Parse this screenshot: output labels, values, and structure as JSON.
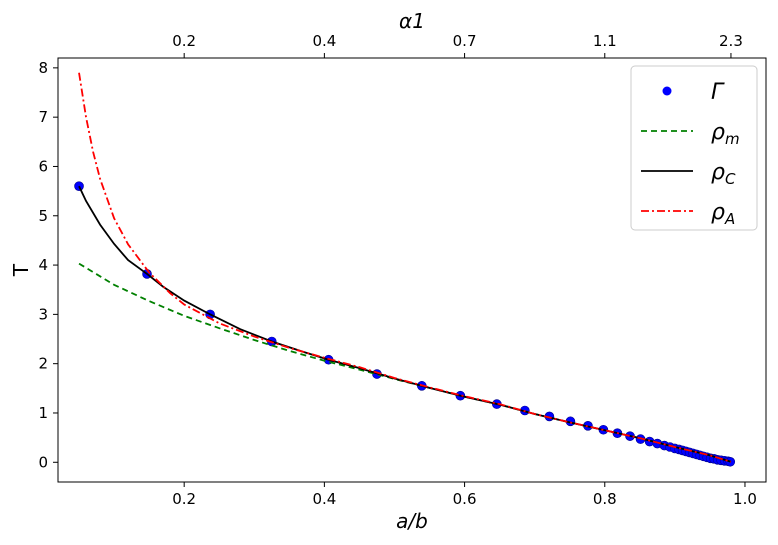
{
  "chart_data": {
    "type": "line",
    "xlabel": "a/b",
    "ylabel": "T",
    "top_axis_label": "α1",
    "xlim": [
      0.02,
      1.03
    ],
    "ylim": [
      -0.4,
      8.2
    ],
    "x_ticks": [
      0.2,
      0.4,
      0.6,
      0.8,
      1.0
    ],
    "x_tick_labels": [
      "0.2",
      "0.4",
      "0.6",
      "0.8",
      "1.0"
    ],
    "y_ticks": [
      0,
      1,
      2,
      3,
      4,
      5,
      6,
      7,
      8
    ],
    "y_tick_labels": [
      "0",
      "1",
      "2",
      "3",
      "4",
      "5",
      "6",
      "7",
      "8"
    ],
    "top_ticks": [
      0.2,
      0.4,
      0.6,
      0.8,
      0.98
    ],
    "top_tick_labels": [
      "0.2",
      "0.4",
      "0.7",
      "1.1",
      "2.3"
    ],
    "grid": false,
    "legend_position": "top-right",
    "series": [
      {
        "name": "Γ",
        "legend_main": "Γ",
        "legend_sub": "",
        "style": "markers",
        "color": "#0000ff",
        "x": [
          0.05,
          0.147,
          0.237,
          0.325,
          0.406,
          0.475,
          0.539,
          0.594,
          0.646,
          0.686,
          0.721,
          0.751,
          0.776,
          0.798,
          0.818,
          0.836,
          0.851,
          0.864,
          0.875,
          0.885,
          0.893,
          0.9,
          0.906,
          0.911,
          0.916,
          0.921,
          0.926,
          0.931,
          0.936,
          0.941,
          0.946,
          0.951,
          0.956,
          0.961,
          0.966,
          0.971,
          0.976,
          0.979
        ],
        "y": [
          5.6,
          3.82,
          3.0,
          2.45,
          2.08,
          1.79,
          1.55,
          1.35,
          1.18,
          1.05,
          0.93,
          0.83,
          0.74,
          0.66,
          0.59,
          0.53,
          0.47,
          0.42,
          0.38,
          0.34,
          0.31,
          0.28,
          0.26,
          0.24,
          0.22,
          0.2,
          0.18,
          0.16,
          0.14,
          0.12,
          0.1,
          0.08,
          0.07,
          0.05,
          0.04,
          0.03,
          0.02,
          0.01
        ]
      },
      {
        "name": "ρm",
        "legend_main": "ρ",
        "legend_sub": "m",
        "style": "dashed",
        "color": "#008000",
        "x": [
          0.05,
          0.1,
          0.15,
          0.2,
          0.25,
          0.3,
          0.35,
          0.4,
          0.45,
          0.5,
          0.55,
          0.6,
          0.65,
          0.7,
          0.75,
          0.8,
          0.85,
          0.9,
          0.95,
          0.98
        ],
        "y": [
          4.03,
          3.6,
          3.27,
          2.97,
          2.72,
          2.48,
          2.26,
          2.06,
          1.88,
          1.69,
          1.51,
          1.33,
          1.17,
          0.98,
          0.81,
          0.65,
          0.49,
          0.31,
          0.14,
          0.01
        ]
      },
      {
        "name": "ρC",
        "legend_main": "ρ",
        "legend_sub": "C",
        "style": "solid",
        "color": "#000000",
        "x": [
          0.05,
          0.06,
          0.08,
          0.1,
          0.12,
          0.147,
          0.17,
          0.2,
          0.237,
          0.28,
          0.325,
          0.37,
          0.406,
          0.45,
          0.5,
          0.55,
          0.6,
          0.65,
          0.7,
          0.75,
          0.8,
          0.85,
          0.9,
          0.95,
          0.98
        ],
        "y": [
          5.6,
          5.3,
          4.82,
          4.43,
          4.1,
          3.82,
          3.56,
          3.28,
          3.0,
          2.7,
          2.45,
          2.24,
          2.08,
          1.91,
          1.7,
          1.51,
          1.33,
          1.17,
          0.98,
          0.81,
          0.65,
          0.49,
          0.31,
          0.14,
          0.01
        ]
      },
      {
        "name": "ρA",
        "legend_main": "ρ",
        "legend_sub": "A",
        "style": "dashdot",
        "color": "#ff0000",
        "x": [
          0.05,
          0.06,
          0.07,
          0.08,
          0.1,
          0.12,
          0.15,
          0.18,
          0.2,
          0.25,
          0.3,
          0.35,
          0.4,
          0.45,
          0.5,
          0.55,
          0.6,
          0.65,
          0.7,
          0.75,
          0.8,
          0.85,
          0.9,
          0.95,
          0.98
        ],
        "y": [
          7.9,
          7.0,
          6.3,
          5.75,
          4.95,
          4.42,
          3.85,
          3.43,
          3.2,
          2.82,
          2.55,
          2.32,
          2.12,
          1.93,
          1.71,
          1.52,
          1.34,
          1.18,
          0.98,
          0.81,
          0.65,
          0.49,
          0.31,
          0.14,
          0.01
        ]
      }
    ]
  }
}
